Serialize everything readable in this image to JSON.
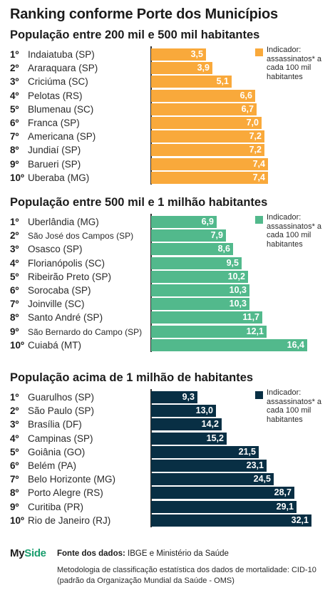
{
  "title": "Ranking conforme Porte dos Municípios",
  "legend_text": "Indicador: assassinatos* a cada 100 mil habitantes",
  "colors": {
    "small": "#f9a93b",
    "medium": "#52b98c",
    "large": "#082f44"
  },
  "footer": {
    "logo_prefix": "My",
    "logo_suffix": "Side",
    "source_label": "Fonte dos dados:",
    "source_text": "IBGE e Ministério da Saúde",
    "methodology": "Metodologia de classificação estatística dos dados de mortalidade: CID-10 (padrão da Organização Mundial da Saúde - OMS)"
  },
  "chart_data": [
    {
      "type": "bar",
      "title": "População entre 200 mil e 500 mil habitantes",
      "ranks": [
        "1º",
        "2º",
        "3º",
        "4º",
        "5º",
        "6º",
        "7º",
        "8º",
        "9º",
        "10º"
      ],
      "categories": [
        "Indaiatuba (SP)",
        "Araraquara (SP)",
        "Criciúma (SC)",
        "Pelotas (RS)",
        "Blumenau (SC)",
        "Franca (SP)",
        "Americana (SP)",
        "Jundiaí (SP)",
        "Barueri (SP)",
        "Uberaba (MG)"
      ],
      "values": [
        3.5,
        3.9,
        5.1,
        6.6,
        6.7,
        7.0,
        7.2,
        7.2,
        7.4,
        7.4
      ],
      "labels": [
        "3,5",
        "3,9",
        "5,1",
        "6,6",
        "6,7",
        "7,0",
        "7,2",
        "7,2",
        "7,4",
        "7,4"
      ],
      "legend": "Indicador: assassinatos* a cada 100 mil habitantes",
      "orientation": "horizontal"
    },
    {
      "type": "bar",
      "title": "População entre 500 mil e 1 milhão habitantes",
      "ranks": [
        "1º",
        "2º",
        "3º",
        "4º",
        "5º",
        "6º",
        "7º",
        "8º",
        "9º",
        "10º"
      ],
      "categories": [
        "Uberlândia (MG)",
        "São José dos Campos (SP)",
        "Osasco (SP)",
        "Florianópolis (SC)",
        "Ribeirão Preto (SP)",
        "Sorocaba (SP)",
        "Joinville (SC)",
        "Santo André (SP)",
        "São Bernardo do Campo (SP)",
        "Cuiabá (MT)"
      ],
      "values": [
        6.9,
        7.9,
        8.6,
        9.5,
        10.2,
        10.3,
        10.3,
        11.7,
        12.1,
        16.4
      ],
      "labels": [
        "6,9",
        "7,9",
        "8,6",
        "9,5",
        "10,2",
        "10,3",
        "10,3",
        "11,7",
        "12,1",
        "16,4"
      ],
      "legend": "Indicador: assassinatos* a cada 100 mil habitantes",
      "orientation": "horizontal"
    },
    {
      "type": "bar",
      "title": "População acima de 1 milhão de habitantes",
      "ranks": [
        "1º",
        "2º",
        "3º",
        "4º",
        "5º",
        "6º",
        "7º",
        "8º",
        "9º",
        "10º"
      ],
      "categories": [
        "Guarulhos (SP)",
        "São Paulo (SP)",
        "Brasília (DF)",
        "Campinas (SP)",
        "Goiânia (GO)",
        "Belém (PA)",
        "Belo Horizonte (MG)",
        "Porto Alegre (RS)",
        "Curitiba (PR)",
        "Rio de Janeiro (RJ)"
      ],
      "values": [
        9.3,
        13.0,
        14.2,
        15.2,
        21.5,
        23.1,
        24.5,
        28.7,
        29.1,
        32.1
      ],
      "labels": [
        "9,3",
        "13,0",
        "14,2",
        "15,2",
        "21,5",
        "23,1",
        "24,5",
        "28,7",
        "29,1",
        "32,1"
      ],
      "legend": "Indicador: assassinatos* a cada 100 mil habitantes",
      "orientation": "horizontal"
    }
  ]
}
